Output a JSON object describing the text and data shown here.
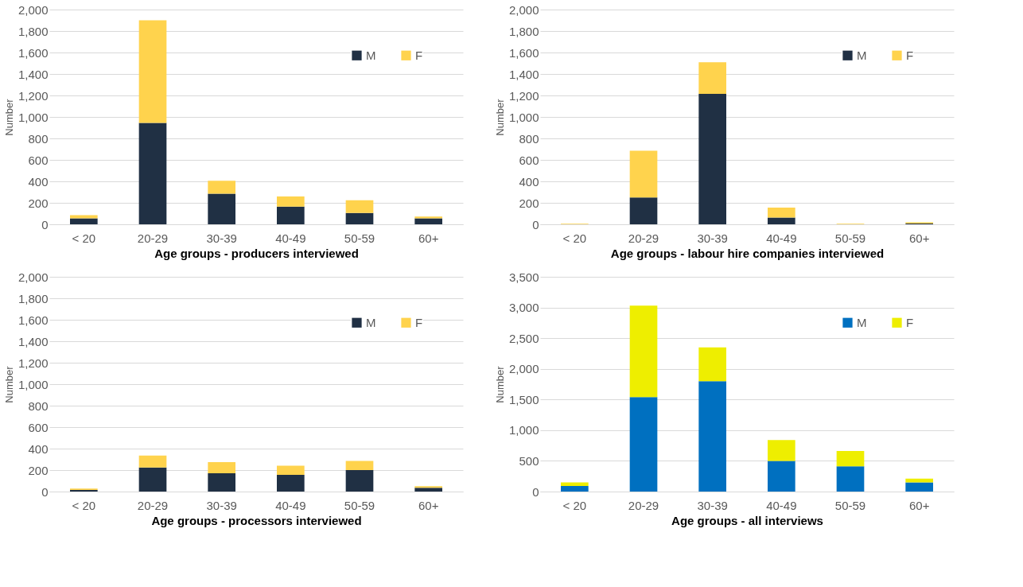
{
  "chart_data": [
    {
      "type": "bar",
      "stacked": true,
      "categories": [
        "< 20",
        "20-29",
        "30-39",
        "40-49",
        "50-59",
        "60+"
      ],
      "xlabel": "Age groups - producers interviewed",
      "ylabel": "Number",
      "ylim": [
        0,
        2000
      ],
      "yticks": [
        0,
        200,
        400,
        600,
        800,
        {
          "value": 1000,
          "label": "1,000"
        },
        {
          "value": 1200,
          "label": "1,200"
        },
        {
          "value": 1400,
          "label": "1,400"
        },
        {
          "value": 1600,
          "label": "1,600"
        },
        {
          "value": 1800,
          "label": "1,800"
        },
        {
          "value": 2000,
          "label": "2,000"
        }
      ],
      "grid": "y",
      "legend": "top right",
      "series": [
        {
          "name": "M",
          "color": "#203044",
          "values": [
            55,
            945,
            285,
            165,
            105,
            55
          ]
        },
        {
          "name": "F",
          "color": "#ffd34d",
          "values": [
            30,
            955,
            120,
            95,
            120,
            18
          ]
        }
      ]
    },
    {
      "type": "bar",
      "stacked": true,
      "categories": [
        "< 20",
        "20-29",
        "30-39",
        "40-49",
        "50-59",
        "60+"
      ],
      "xlabel": "Age groups - labour hire companies interviewed",
      "ylabel": "Number",
      "ylim": [
        0,
        2000
      ],
      "yticks": [
        0,
        200,
        400,
        600,
        800,
        {
          "value": 1000,
          "label": "1,000"
        },
        {
          "value": 1200,
          "label": "1,200"
        },
        {
          "value": 1400,
          "label": "1,400"
        },
        {
          "value": 1600,
          "label": "1,600"
        },
        {
          "value": 1800,
          "label": "1,800"
        },
        {
          "value": 2000,
          "label": "2,000"
        }
      ],
      "grid": "y",
      "legend": "top right",
      "series": [
        {
          "name": "M",
          "color": "#203044",
          "values": [
            0,
            250,
            1215,
            63,
            0,
            8
          ]
        },
        {
          "name": "F",
          "color": "#ffd34d",
          "values": [
            5,
            435,
            295,
            92,
            5,
            10
          ]
        }
      ]
    },
    {
      "type": "bar",
      "stacked": true,
      "categories": [
        "< 20",
        "20-29",
        "30-39",
        "40-49",
        "50-59",
        "60+"
      ],
      "xlabel": "Age groups - processors interviewed",
      "ylabel": "Number",
      "ylim": [
        0,
        2000
      ],
      "yticks": [
        0,
        200,
        400,
        600,
        800,
        {
          "value": 1000,
          "label": "1,000"
        },
        {
          "value": 1200,
          "label": "1,200"
        },
        {
          "value": 1400,
          "label": "1,400"
        },
        {
          "value": 1600,
          "label": "1,600"
        },
        {
          "value": 1800,
          "label": "1,800"
        },
        {
          "value": 2000,
          "label": "2,000"
        }
      ],
      "grid": "y",
      "legend": "top right",
      "series": [
        {
          "name": "M",
          "color": "#203044",
          "values": [
            15,
            225,
            170,
            155,
            200,
            35
          ]
        },
        {
          "name": "F",
          "color": "#ffd34d",
          "values": [
            12,
            110,
            105,
            85,
            85,
            15
          ]
        }
      ]
    },
    {
      "type": "bar",
      "stacked": true,
      "categories": [
        "< 20",
        "20-29",
        "30-39",
        "40-49",
        "50-59",
        "60+"
      ],
      "xlabel": "Age groups - all interviews",
      "ylabel": "Number",
      "ylim": [
        0,
        3500
      ],
      "yticks": [
        0,
        500,
        {
          "value": 1000,
          "label": "1,000"
        },
        {
          "value": 1500,
          "label": "1,500"
        },
        {
          "value": 2000,
          "label": "2,000"
        },
        {
          "value": 2500,
          "label": "2,500"
        },
        {
          "value": 3000,
          "label": "3,000"
        },
        {
          "value": 3500,
          "label": "3,500"
        }
      ],
      "grid": "y",
      "legend": "top right",
      "series": [
        {
          "name": "M",
          "color": "#0070c0",
          "values": [
            90,
            1540,
            1800,
            500,
            410,
            150
          ]
        },
        {
          "name": "F",
          "color": "#eeee00",
          "values": [
            60,
            1490,
            550,
            340,
            250,
            60
          ]
        }
      ]
    }
  ]
}
